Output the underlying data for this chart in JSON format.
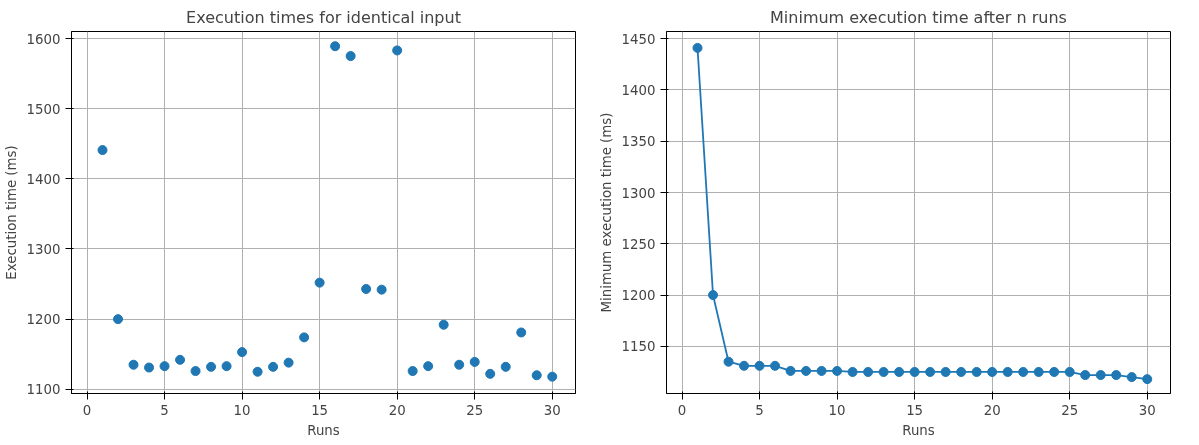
{
  "chart_data": [
    {
      "type": "scatter",
      "title": "Execution times for identical input",
      "xlabel": "Runs",
      "ylabel": "Execution time (ms)",
      "x": [
        1,
        2,
        3,
        4,
        5,
        6,
        7,
        8,
        9,
        10,
        11,
        12,
        13,
        14,
        15,
        16,
        17,
        18,
        19,
        20,
        21,
        22,
        23,
        24,
        25,
        26,
        27,
        28,
        29,
        30
      ],
      "series": [
        {
          "color": "#1f77b4",
          "values": [
            1441,
            1200,
            1135,
            1131,
            1133,
            1142,
            1126,
            1132,
            1133,
            1153,
            1125,
            1132,
            1138,
            1174,
            1252,
            1589,
            1575,
            1243,
            1242,
            1583,
            1126,
            1133,
            1192,
            1135,
            1139,
            1122,
            1132,
            1181,
            1120,
            1118
          ]
        }
      ],
      "xlim": [
        -1,
        31.5
      ],
      "ylim": [
        1094,
        1610
      ],
      "xticks": [
        0,
        5,
        10,
        15,
        20,
        25,
        30
      ],
      "yticks": [
        1100,
        1200,
        1300,
        1400,
        1500,
        1600
      ],
      "grid": true,
      "marker": "circle"
    },
    {
      "type": "line",
      "title": "Minimum execution time after n runs",
      "xlabel": "Runs",
      "ylabel": "Minimum execution time (ms)",
      "x": [
        1,
        2,
        3,
        4,
        5,
        6,
        7,
        8,
        9,
        10,
        11,
        12,
        13,
        14,
        15,
        16,
        17,
        18,
        19,
        20,
        21,
        22,
        23,
        24,
        25,
        26,
        27,
        28,
        29,
        30
      ],
      "series": [
        {
          "color": "#1f77b4",
          "values": [
            1441,
            1200,
            1135,
            1131,
            1131,
            1131,
            1126,
            1126,
            1126,
            1126,
            1125,
            1125,
            1125,
            1125,
            1125,
            1125,
            1125,
            1125,
            1125,
            1125,
            1125,
            1125,
            1125,
            1125,
            1125,
            1122,
            1122,
            1122,
            1120,
            1118
          ]
        }
      ],
      "xlim": [
        -1,
        31.5
      ],
      "ylim": [
        1104,
        1457
      ],
      "xticks": [
        0,
        5,
        10,
        15,
        20,
        25,
        30
      ],
      "yticks": [
        1150,
        1200,
        1250,
        1300,
        1350,
        1400,
        1450
      ],
      "grid": true,
      "marker": "circle",
      "line_style": "solid"
    }
  ]
}
